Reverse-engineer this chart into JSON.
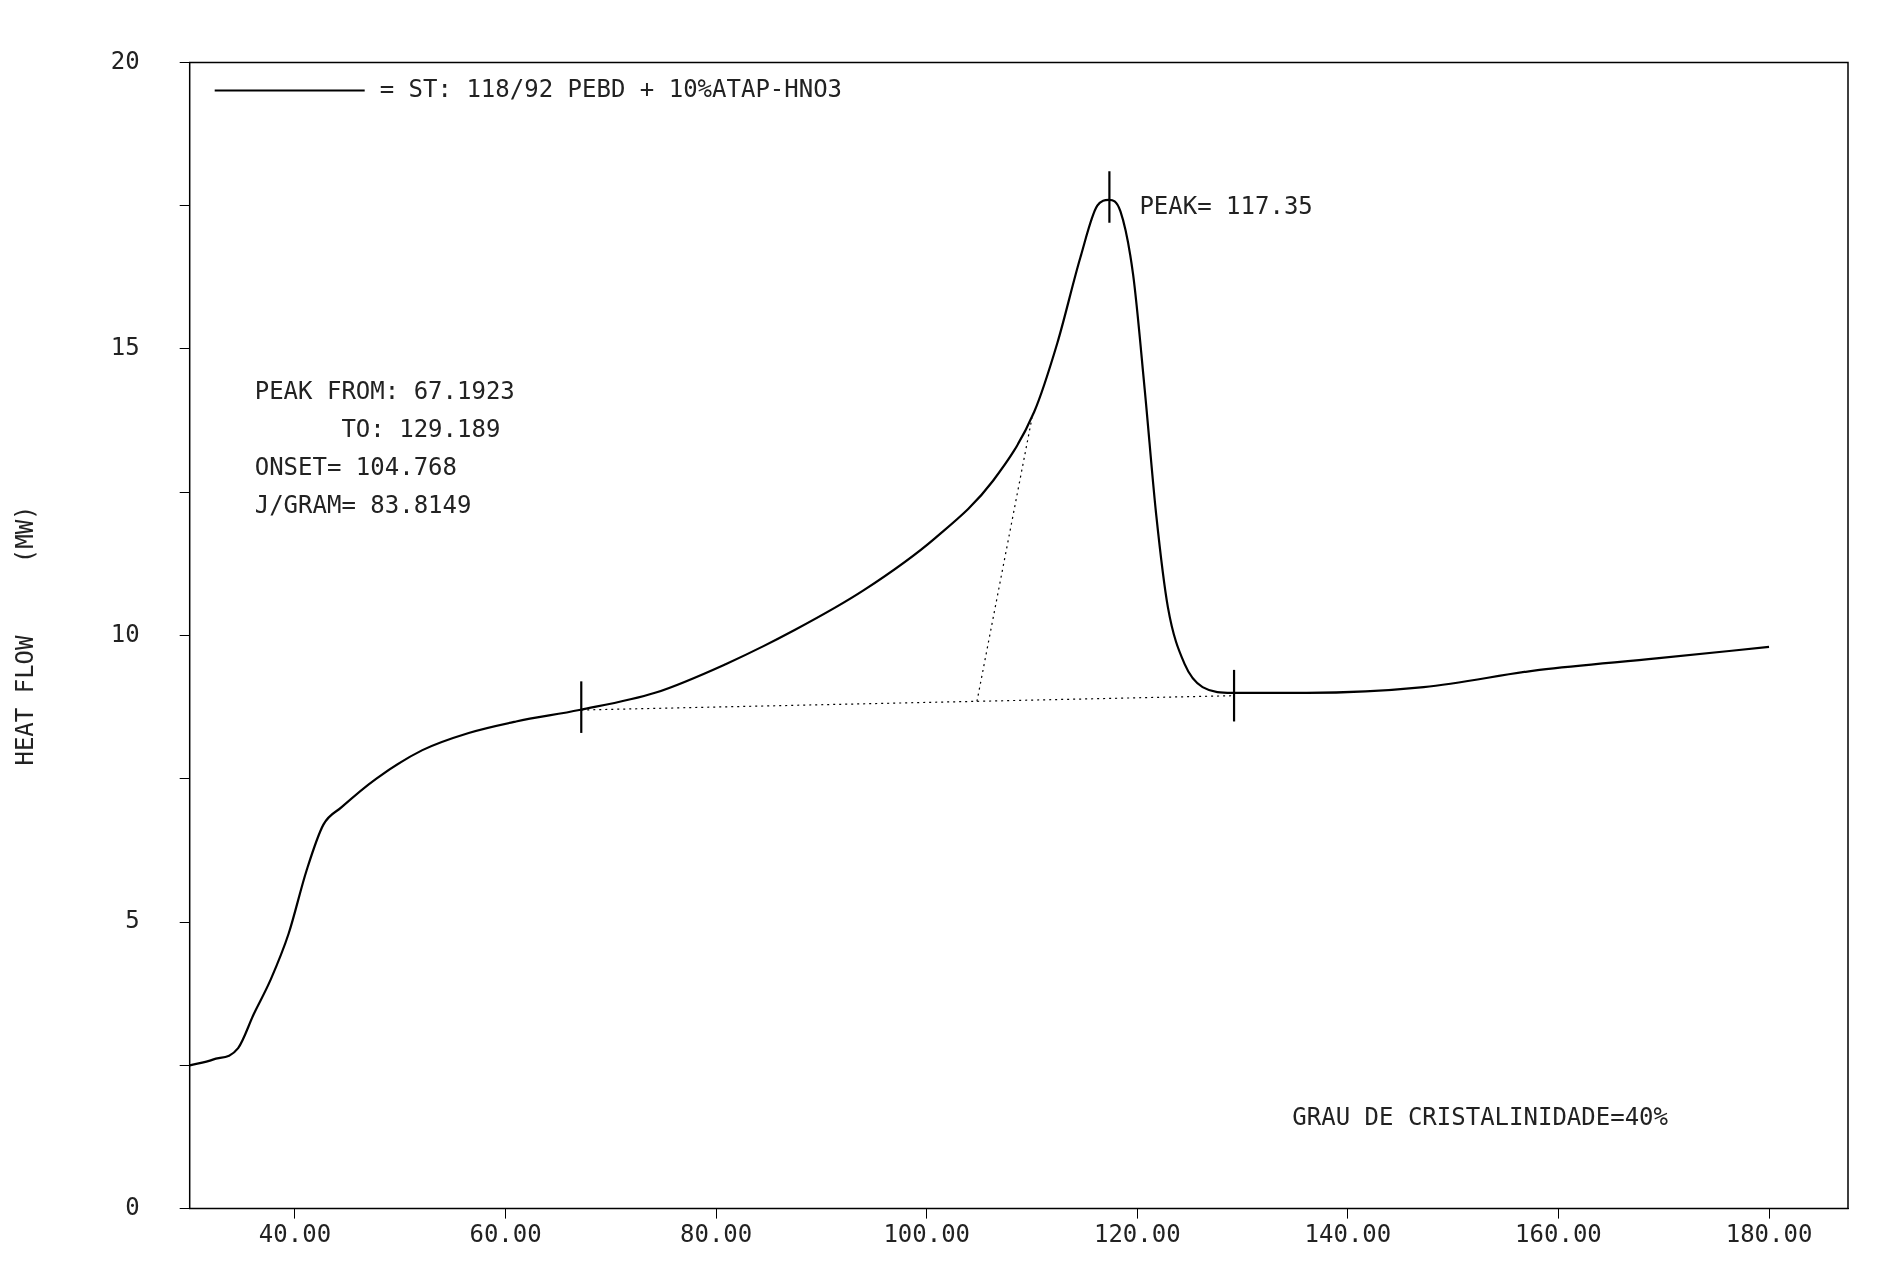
{
  "chart_data": {
    "type": "line",
    "ylabel": "HEAT FLOW     (MW)",
    "legend": "top left",
    "marker": "none",
    "grid": false,
    "xlim": [
      30,
      187.5
    ],
    "ylim": [
      0,
      20
    ],
    "xticks": [
      {
        "value": 40,
        "label": "40.00"
      },
      {
        "value": 60,
        "label": "60.00"
      },
      {
        "value": 80,
        "label": "80.00"
      },
      {
        "value": 100,
        "label": "100.00"
      },
      {
        "value": 120,
        "label": "120.00"
      },
      {
        "value": 140,
        "label": "140.00"
      },
      {
        "value": 160,
        "label": "160.00"
      },
      {
        "value": 180,
        "label": "180.00"
      }
    ],
    "yticks": [
      0,
      {
        "value": 2.5,
        "label": null
      },
      5,
      {
        "value": 7.5,
        "label": null
      },
      10,
      {
        "value": 12.5,
        "label": null
      },
      15,
      {
        "value": 17.5,
        "label": null
      },
      20
    ],
    "series": [
      {
        "name": "= ST: 118/92 PEBD + 10%ATAP-HNO3",
        "color": "#000000",
        "line_style": "solid",
        "x": [
          30,
          32.2,
          34.6,
          36.1,
          37.7,
          39.4,
          41.1,
          42.7,
          44.4,
          47.7,
          52.1,
          56.5,
          61,
          67,
          74.2,
          80.9,
          87.5,
          94.1,
          100.8,
          106.3,
          110.2,
          112.4,
          114.6,
          116.2,
          117.3,
          118.4,
          119.6,
          120.7,
          121.8,
          122.9,
          124.5,
          126.2,
          129,
          136.1,
          147.2,
          158.2,
          169.3,
          180
        ],
        "values": [
          2.5,
          2.6,
          2.8,
          3.4,
          4,
          4.8,
          5.9,
          6.7,
          7,
          7.5,
          8,
          8.3,
          8.5,
          8.7,
          9,
          9.5,
          10.1,
          10.8,
          11.7,
          12.7,
          13.9,
          15.1,
          16.6,
          17.5,
          17.6,
          17.4,
          16.3,
          14.3,
          12.1,
          10.5,
          9.5,
          9.1,
          9,
          9,
          9.1,
          9.4,
          9.6,
          9.8
        ]
      },
      {
        "color": "#000000",
        "line_style": "dotted",
        "x": [
          67.19,
          129.19
        ],
        "values": [
          8.7,
          8.95
        ]
      },
      {
        "color": "#000000",
        "line_style": "dotted",
        "x": [
          104.77,
          110
        ],
        "values": [
          8.85,
          13.8
        ]
      },
      {
        "color": "#000000",
        "line_style": "solid",
        "x": [
          67.19,
          67.19
        ],
        "values": [
          8.3,
          9.2
        ]
      },
      {
        "color": "#000000",
        "line_style": "solid",
        "x": [
          117.35,
          117.35
        ],
        "values": [
          17.2,
          18.1
        ]
      },
      {
        "color": "#000000",
        "line_style": "solid",
        "x": [
          129.19,
          129.19
        ],
        "values": [
          8.5,
          9.4
        ]
      }
    ],
    "annotations": [
      {
        "text": "PEAK= 117.35",
        "x": 117.35,
        "y": 17.6
      },
      "PEAK FROM: 67.1923",
      "      TO: 129.189",
      "ONSET= 104.768",
      "J/GRAM= 83.8149",
      "GRAU DE CRISTALINIDADE=40%"
    ]
  }
}
